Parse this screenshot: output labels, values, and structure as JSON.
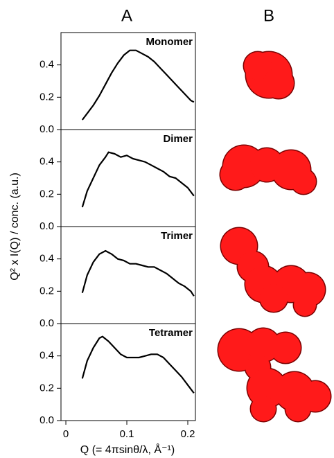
{
  "panel_labels": [
    "A",
    "B"
  ],
  "ylabel": "Q² x I(Q) / conc. (a.u.)",
  "xlabel": "Q (= 4πsinθ/λ, Å⁻¹)",
  "chart_data": [
    {
      "type": "line",
      "title": "Monomer",
      "color": "#000000",
      "x": [
        0.027,
        0.035,
        0.045,
        0.055,
        0.065,
        0.075,
        0.085,
        0.095,
        0.105,
        0.115,
        0.125,
        0.135,
        0.145,
        0.155,
        0.165,
        0.175,
        0.185,
        0.195,
        0.205,
        0.21
      ],
      "values": [
        0.06,
        0.1,
        0.15,
        0.21,
        0.28,
        0.35,
        0.41,
        0.46,
        0.49,
        0.49,
        0.47,
        0.45,
        0.42,
        0.38,
        0.34,
        0.3,
        0.26,
        0.22,
        0.18,
        0.17
      ],
      "xlim": [
        -0.008,
        0.2125
      ],
      "ylim": [
        0,
        0.6
      ],
      "yticks": [
        {
          "value": 0,
          "label": "0.0"
        },
        0.2,
        0.4
      ]
    },
    {
      "type": "line",
      "title": "Dimer",
      "color": "#000000",
      "x": [
        0.027,
        0.035,
        0.045,
        0.055,
        0.065,
        0.07,
        0.08,
        0.09,
        0.1,
        0.11,
        0.12,
        0.13,
        0.14,
        0.15,
        0.16,
        0.17,
        0.18,
        0.19,
        0.2,
        0.21
      ],
      "values": [
        0.12,
        0.22,
        0.3,
        0.38,
        0.43,
        0.46,
        0.45,
        0.43,
        0.44,
        0.42,
        0.41,
        0.4,
        0.38,
        0.36,
        0.34,
        0.31,
        0.3,
        0.27,
        0.24,
        0.19
      ],
      "xlim": [
        -0.008,
        0.2125
      ],
      "ylim": [
        0,
        0.6
      ],
      "yticks": [
        {
          "value": 0,
          "label": "0.0"
        },
        0.2,
        0.4
      ]
    },
    {
      "type": "line",
      "title": "Trimer",
      "color": "#000000",
      "x": [
        0.027,
        0.035,
        0.045,
        0.055,
        0.065,
        0.075,
        0.085,
        0.095,
        0.105,
        0.115,
        0.125,
        0.135,
        0.145,
        0.155,
        0.165,
        0.175,
        0.185,
        0.195,
        0.205,
        0.21
      ],
      "values": [
        0.19,
        0.3,
        0.38,
        0.43,
        0.45,
        0.43,
        0.4,
        0.39,
        0.37,
        0.37,
        0.36,
        0.35,
        0.35,
        0.33,
        0.31,
        0.28,
        0.25,
        0.23,
        0.2,
        0.17
      ],
      "xlim": [
        -0.008,
        0.2125
      ],
      "ylim": [
        0,
        0.6
      ],
      "yticks": [
        {
          "value": 0,
          "label": "0.0"
        },
        0.2,
        0.4
      ]
    },
    {
      "type": "line",
      "title": "Tetramer",
      "color": "#000000",
      "x": [
        0.027,
        0.035,
        0.045,
        0.055,
        0.06,
        0.07,
        0.08,
        0.09,
        0.1,
        0.11,
        0.12,
        0.13,
        0.14,
        0.15,
        0.16,
        0.17,
        0.18,
        0.19,
        0.2,
        0.21
      ],
      "values": [
        0.26,
        0.37,
        0.45,
        0.51,
        0.52,
        0.49,
        0.45,
        0.41,
        0.39,
        0.39,
        0.39,
        0.4,
        0.41,
        0.41,
        0.39,
        0.35,
        0.31,
        0.27,
        0.22,
        0.17
      ],
      "xlim": [
        -0.008,
        0.2125
      ],
      "ylim": [
        0,
        0.6
      ],
      "yticks": [
        {
          "value": 0,
          "label": "0.0"
        },
        0.2,
        0.4
      ],
      "xticks": [
        0,
        0.1,
        0.2
      ]
    }
  ]
}
